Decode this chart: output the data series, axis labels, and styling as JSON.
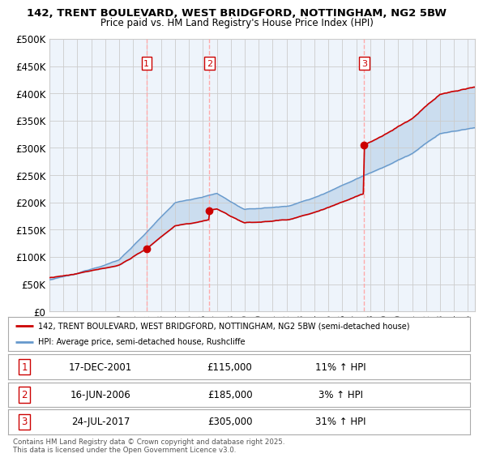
{
  "title1": "142, TRENT BOULEVARD, WEST BRIDGFORD, NOTTINGHAM, NG2 5BW",
  "title2": "Price paid vs. HM Land Registry's House Price Index (HPI)",
  "ylabel_ticks": [
    "£0",
    "£50K",
    "£100K",
    "£150K",
    "£200K",
    "£250K",
    "£300K",
    "£350K",
    "£400K",
    "£450K",
    "£500K"
  ],
  "ytick_values": [
    0,
    50000,
    100000,
    150000,
    200000,
    250000,
    300000,
    350000,
    400000,
    450000,
    500000
  ],
  "ylim": [
    0,
    500000
  ],
  "xlim_start": 1995.0,
  "xlim_end": 2025.5,
  "xtick_years": [
    1995,
    1996,
    1997,
    1998,
    1999,
    2000,
    2001,
    2002,
    2003,
    2004,
    2005,
    2006,
    2007,
    2008,
    2009,
    2010,
    2011,
    2012,
    2013,
    2014,
    2015,
    2016,
    2017,
    2018,
    2019,
    2020,
    2021,
    2022,
    2023,
    2024,
    2025
  ],
  "property_color": "#cc0000",
  "hpi_color": "#6699cc",
  "fill_color": "#ddeeff",
  "transaction1": {
    "date": 2001.96,
    "price": 115000,
    "label": "1",
    "date_str": "17-DEC-2001",
    "price_str": "£115,000",
    "pct": "11% ↑ HPI"
  },
  "transaction2": {
    "date": 2006.46,
    "price": 185000,
    "label": "2",
    "date_str": "16-JUN-2006",
    "price_str": "£185,000",
    "pct": "3% ↑ HPI"
  },
  "transaction3": {
    "date": 2017.56,
    "price": 305000,
    "label": "3",
    "date_str": "24-JUL-2017",
    "price_str": "£305,000",
    "pct": "31% ↑ HPI"
  },
  "legend_property": "142, TRENT BOULEVARD, WEST BRIDGFORD, NOTTINGHAM, NG2 5BW (semi-detached house)",
  "legend_hpi": "HPI: Average price, semi-detached house, Rushcliffe",
  "footnote": "Contains HM Land Registry data © Crown copyright and database right 2025.\nThis data is licensed under the Open Government Licence v3.0.",
  "bg_color": "#ffffff",
  "grid_color": "#cccccc"
}
